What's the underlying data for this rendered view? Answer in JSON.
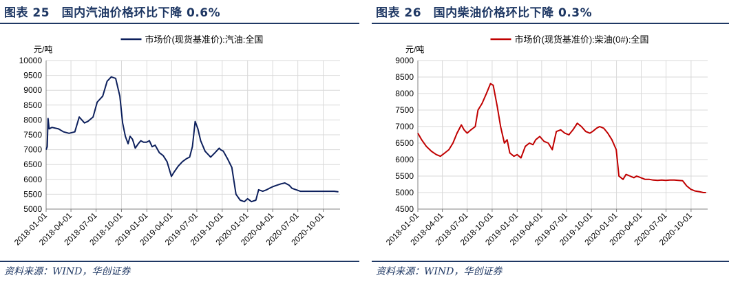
{
  "panels": [
    {
      "id": "left",
      "figure_title": "图表 25　国内汽油价格环比下降 0.6%",
      "source": "资料来源：WIND，华创证券"
    },
    {
      "id": "right",
      "figure_title": "图表 26　国内柴油价格环比下降 0.3%",
      "source": "资料来源：WIND，华创证券"
    }
  ],
  "chart_data": [
    {
      "type": "line",
      "title": "",
      "ylabel": "元/吨",
      "xlabel": "",
      "ylim": [
        5000,
        10000
      ],
      "yticks": [
        5000,
        5500,
        6000,
        6500,
        7000,
        7500,
        8000,
        8500,
        9000,
        9500,
        10000
      ],
      "xlim": [
        "2018-01-01",
        "2020-12-01"
      ],
      "xtick_labels": [
        "2018-01-01",
        "2018-04-01",
        "2018-07-01",
        "2018-10-01",
        "2019-01-01",
        "2019-04-01",
        "2019-07-01",
        "2019-10-01",
        "2020-01-01",
        "2020-04-01",
        "2020-07-01",
        "2020-10-01"
      ],
      "grid": true,
      "legend": "top-center",
      "line_color": "#0c1f5c",
      "series": [
        {
          "name": "市场价(现货基准价):汽油:全国",
          "x": [
            "2018-01-01",
            "2018-01-05",
            "2018-01-08",
            "2018-01-12",
            "2018-01-22",
            "2018-02-15",
            "2018-03-05",
            "2018-03-25",
            "2018-04-15",
            "2018-05-01",
            "2018-05-20",
            "2018-06-01",
            "2018-06-20",
            "2018-07-05",
            "2018-07-25",
            "2018-08-10",
            "2018-08-25",
            "2018-09-10",
            "2018-09-25",
            "2018-10-05",
            "2018-10-15",
            "2018-10-25",
            "2018-11-01",
            "2018-11-10",
            "2018-11-20",
            "2018-12-01",
            "2018-12-10",
            "2018-12-20",
            "2018-12-31",
            "2019-01-10",
            "2019-01-20",
            "2019-01-31",
            "2019-02-15",
            "2019-03-01",
            "2019-03-15",
            "2019-03-31",
            "2019-04-10",
            "2019-04-25",
            "2019-05-10",
            "2019-05-25",
            "2019-06-05",
            "2019-06-15",
            "2019-06-25",
            "2019-07-05",
            "2019-07-15",
            "2019-07-31",
            "2019-08-20",
            "2019-09-05",
            "2019-09-15",
            "2019-09-20",
            "2019-09-25",
            "2019-10-05",
            "2019-10-20",
            "2019-11-05",
            "2019-11-20",
            "2019-12-05",
            "2019-12-20",
            "2020-01-01",
            "2020-01-15",
            "2020-01-31",
            "2020-02-10",
            "2020-02-25",
            "2020-03-10",
            "2020-03-20",
            "2020-03-31",
            "2020-04-15",
            "2020-05-01",
            "2020-05-15",
            "2020-05-31",
            "2020-06-10",
            "2020-06-25",
            "2020-07-10",
            "2020-07-25",
            "2020-08-10",
            "2020-08-25",
            "2020-09-10",
            "2020-09-25",
            "2020-10-10",
            "2020-10-25",
            "2020-11-10",
            "2020-11-25"
          ],
          "y": [
            7000,
            7100,
            8050,
            7700,
            7750,
            7700,
            7600,
            7550,
            7600,
            8100,
            7900,
            7950,
            8100,
            8600,
            8800,
            9300,
            9450,
            9400,
            8800,
            7900,
            7450,
            7200,
            7450,
            7350,
            7050,
            7200,
            7300,
            7250,
            7250,
            7300,
            7100,
            7150,
            6900,
            6800,
            6600,
            6100,
            6250,
            6450,
            6600,
            6700,
            6750,
            7100,
            7950,
            7700,
            7300,
            6950,
            6750,
            6900,
            7000,
            7050,
            7000,
            6950,
            6700,
            6400,
            5500,
            5300,
            5250,
            5350,
            5250,
            5300,
            5650,
            5600,
            5650,
            5700,
            5750,
            5800,
            5850,
            5880,
            5800,
            5700,
            5650,
            5600,
            5600,
            5600,
            5600,
            5600,
            5600,
            5600,
            5600,
            5600,
            5580
          ]
        }
      ]
    },
    {
      "type": "line",
      "title": "",
      "ylabel": "元/吨",
      "xlabel": "",
      "ylim": [
        4500,
        9000
      ],
      "yticks": [
        4500,
        5000,
        5500,
        6000,
        6500,
        7000,
        7500,
        8000,
        8500,
        9000
      ],
      "xlim": [
        "2018-01-01",
        "2020-12-01"
      ],
      "xtick_labels": [
        "2018-01-01",
        "2018-04-01",
        "2018-07-01",
        "2018-10-01",
        "2019-01-01",
        "2019-04-01",
        "2019-07-01",
        "2019-10-01",
        "2020-01-01",
        "2020-04-01",
        "2020-07-01",
        "2020-10-01"
      ],
      "grid": true,
      "legend": "top-center",
      "line_color": "#c00000",
      "series": [
        {
          "name": "市场价(现货基准价):柴油(0#):全国",
          "x": [
            "2018-01-01",
            "2018-01-15",
            "2018-02-01",
            "2018-02-20",
            "2018-03-10",
            "2018-03-25",
            "2018-04-10",
            "2018-04-25",
            "2018-05-10",
            "2018-05-25",
            "2018-06-10",
            "2018-06-20",
            "2018-07-01",
            "2018-07-15",
            "2018-07-31",
            "2018-08-10",
            "2018-08-25",
            "2018-09-10",
            "2018-09-25",
            "2018-10-05",
            "2018-10-20",
            "2018-11-01",
            "2018-11-15",
            "2018-11-25",
            "2018-12-05",
            "2018-12-20",
            "2019-01-01",
            "2019-01-15",
            "2019-01-31",
            "2019-02-15",
            "2019-02-28",
            "2019-03-10",
            "2019-03-25",
            "2019-04-10",
            "2019-04-25",
            "2019-05-10",
            "2019-05-25",
            "2019-06-10",
            "2019-06-25",
            "2019-07-10",
            "2019-07-25",
            "2019-08-10",
            "2019-08-25",
            "2019-09-10",
            "2019-09-25",
            "2019-10-05",
            "2019-10-20",
            "2019-10-31",
            "2019-11-15",
            "2019-11-30",
            "2019-12-15",
            "2019-12-31",
            "2020-01-10",
            "2020-01-25",
            "2020-02-05",
            "2020-02-20",
            "2020-03-05",
            "2020-03-15",
            "2020-03-31",
            "2020-04-15",
            "2020-05-01",
            "2020-05-15",
            "2020-05-31",
            "2020-06-15",
            "2020-06-30",
            "2020-07-15",
            "2020-07-31",
            "2020-08-15",
            "2020-08-31",
            "2020-09-15",
            "2020-09-30",
            "2020-10-15",
            "2020-10-31",
            "2020-11-15",
            "2020-11-25"
          ],
          "y": [
            6800,
            6600,
            6400,
            6250,
            6150,
            6100,
            6200,
            6300,
            6500,
            6800,
            7050,
            6900,
            6800,
            6900,
            7000,
            7500,
            7700,
            8000,
            8300,
            8250,
            7600,
            7000,
            6500,
            6600,
            6200,
            6100,
            6150,
            6050,
            6400,
            6500,
            6450,
            6600,
            6700,
            6550,
            6500,
            6300,
            6850,
            6900,
            6800,
            6750,
            6900,
            7100,
            7000,
            6850,
            6800,
            6850,
            6950,
            7000,
            6950,
            6800,
            6600,
            6300,
            5500,
            5400,
            5550,
            5500,
            5450,
            5500,
            5450,
            5400,
            5400,
            5380,
            5370,
            5380,
            5370,
            5380,
            5380,
            5370,
            5360,
            5200,
            5100,
            5050,
            5030,
            5000,
            5000
          ]
        }
      ]
    }
  ]
}
